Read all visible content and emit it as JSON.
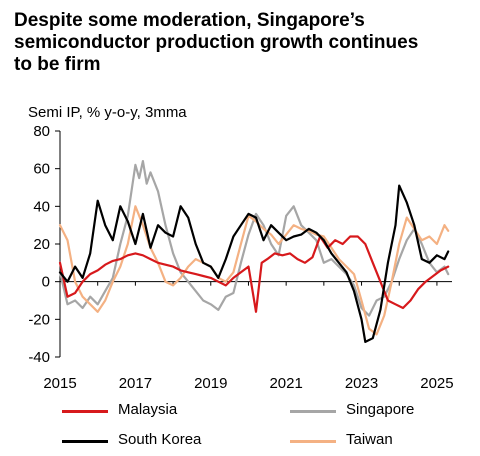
{
  "title_lines": [
    "Despite some moderation, Singapore’s",
    "semiconductor production growth continues",
    "to be firm"
  ],
  "chart_data": {
    "type": "line",
    "title": "Despite some moderation, Singapore’s semiconductor production growth continues to be firm",
    "ylabel": "Semi IP, % y-o-y, 3mma",
    "xlim": [
      2015,
      2025.4
    ],
    "ylim": [
      -40,
      80
    ],
    "x_ticks": [
      "2015",
      "2017",
      "2019",
      "2021",
      "2023",
      "2025"
    ],
    "y_ticks": [
      "80",
      "60",
      "40",
      "20",
      "0",
      "-20",
      "-40"
    ],
    "grid": false,
    "legend_position": "bottom",
    "series": [
      {
        "name": "Malaysia",
        "color": "#d7191c",
        "x": [
          2015.0,
          2015.2,
          2015.4,
          2015.6,
          2015.8,
          2016.0,
          2016.2,
          2016.4,
          2016.6,
          2016.8,
          2017.0,
          2017.2,
          2017.4,
          2017.6,
          2017.8,
          2018.0,
          2018.2,
          2018.4,
          2018.6,
          2018.8,
          2019.0,
          2019.2,
          2019.4,
          2019.6,
          2019.8,
          2020.0,
          2020.2,
          2020.35,
          2020.5,
          2020.7,
          2020.9,
          2021.1,
          2021.3,
          2021.5,
          2021.7,
          2021.9,
          2022.1,
          2022.3,
          2022.5,
          2022.7,
          2022.9,
          2023.1,
          2023.3,
          2023.5,
          2023.7,
          2023.9,
          2024.1,
          2024.3,
          2024.5,
          2024.7,
          2024.9,
          2025.1,
          2025.3
        ],
        "y": [
          10,
          -8,
          -6,
          0,
          4,
          6,
          9,
          11,
          12,
          14,
          15,
          14,
          12,
          10,
          9,
          8,
          6,
          5,
          4,
          3,
          2,
          0,
          -2,
          2,
          5,
          8,
          -16,
          10,
          12,
          15,
          14,
          15,
          12,
          10,
          13,
          24,
          18,
          22,
          20,
          24,
          24,
          20,
          10,
          0,
          -10,
          -12,
          -14,
          -10,
          -4,
          0,
          3,
          6,
          8
        ]
      },
      {
        "name": "Singapore",
        "color": "#a6a6a6",
        "x": [
          2015.0,
          2015.2,
          2015.4,
          2015.6,
          2015.8,
          2016.0,
          2016.2,
          2016.4,
          2016.6,
          2016.8,
          2017.0,
          2017.1,
          2017.2,
          2017.3,
          2017.4,
          2017.6,
          2017.8,
          2018.0,
          2018.2,
          2018.4,
          2018.6,
          2018.8,
          2019.0,
          2019.2,
          2019.4,
          2019.6,
          2019.8,
          2020.0,
          2020.2,
          2020.4,
          2020.6,
          2020.8,
          2021.0,
          2021.2,
          2021.4,
          2021.6,
          2021.8,
          2022.0,
          2022.2,
          2022.4,
          2022.6,
          2022.8,
          2023.0,
          2023.2,
          2023.4,
          2023.6,
          2023.8,
          2024.0,
          2024.2,
          2024.4,
          2024.6,
          2024.8,
          2025.0,
          2025.2,
          2025.3
        ],
        "y": [
          5,
          -12,
          -10,
          -14,
          -8,
          -12,
          -5,
          2,
          20,
          35,
          62,
          55,
          64,
          52,
          58,
          48,
          30,
          15,
          5,
          0,
          -5,
          -10,
          -12,
          -15,
          -8,
          -6,
          10,
          25,
          36,
          30,
          20,
          14,
          35,
          40,
          30,
          26,
          22,
          10,
          12,
          8,
          4,
          -2,
          -14,
          -18,
          -10,
          -8,
          0,
          12,
          22,
          28,
          20,
          10,
          5,
          8,
          4
        ]
      },
      {
        "name": "South Korea",
        "color": "#000000",
        "x": [
          2015.0,
          2015.2,
          2015.4,
          2015.6,
          2015.8,
          2016.0,
          2016.2,
          2016.4,
          2016.6,
          2016.8,
          2017.0,
          2017.2,
          2017.4,
          2017.6,
          2017.8,
          2018.0,
          2018.2,
          2018.4,
          2018.6,
          2018.8,
          2019.0,
          2019.2,
          2019.4,
          2019.6,
          2019.8,
          2020.0,
          2020.2,
          2020.4,
          2020.6,
          2020.8,
          2021.0,
          2021.2,
          2021.4,
          2021.6,
          2021.8,
          2022.0,
          2022.2,
          2022.4,
          2022.6,
          2022.8,
          2023.0,
          2023.1,
          2023.3,
          2023.5,
          2023.7,
          2023.9,
          2024.0,
          2024.2,
          2024.4,
          2024.6,
          2024.8,
          2025.0,
          2025.2,
          2025.3
        ],
        "y": [
          5,
          0,
          8,
          2,
          15,
          43,
          30,
          22,
          40,
          32,
          20,
          36,
          18,
          30,
          26,
          24,
          40,
          34,
          20,
          10,
          8,
          2,
          12,
          24,
          30,
          36,
          34,
          22,
          30,
          26,
          22,
          24,
          25,
          28,
          26,
          22,
          15,
          10,
          5,
          -5,
          -20,
          -32,
          -30,
          -15,
          10,
          30,
          51,
          42,
          30,
          12,
          10,
          14,
          12,
          16
        ]
      },
      {
        "name": "Taiwan",
        "color": "#f4b183",
        "x": [
          2015.0,
          2015.2,
          2015.4,
          2015.6,
          2015.8,
          2016.0,
          2016.2,
          2016.4,
          2016.6,
          2016.8,
          2017.0,
          2017.2,
          2017.4,
          2017.6,
          2017.8,
          2018.0,
          2018.2,
          2018.4,
          2018.6,
          2018.8,
          2019.0,
          2019.2,
          2019.4,
          2019.6,
          2019.8,
          2020.0,
          2020.2,
          2020.4,
          2020.6,
          2020.8,
          2021.0,
          2021.2,
          2021.4,
          2021.6,
          2021.8,
          2022.0,
          2022.2,
          2022.4,
          2022.6,
          2022.8,
          2023.0,
          2023.2,
          2023.4,
          2023.6,
          2023.8,
          2024.0,
          2024.2,
          2024.4,
          2024.6,
          2024.8,
          2025.0,
          2025.2,
          2025.3
        ],
        "y": [
          30,
          22,
          0,
          -8,
          -12,
          -16,
          -10,
          0,
          8,
          20,
          40,
          30,
          18,
          10,
          0,
          -2,
          2,
          8,
          12,
          10,
          8,
          2,
          0,
          5,
          20,
          35,
          32,
          28,
          25,
          20,
          25,
          30,
          28,
          27,
          25,
          24,
          18,
          12,
          8,
          4,
          -10,
          -25,
          -28,
          -18,
          0,
          20,
          34,
          28,
          22,
          24,
          20,
          30,
          27
        ]
      }
    ]
  },
  "legend": [
    {
      "label": "Malaysia",
      "color": "#d7191c"
    },
    {
      "label": "Singapore",
      "color": "#a6a6a6"
    },
    {
      "label": "South Korea",
      "color": "#000000"
    },
    {
      "label": "Taiwan",
      "color": "#f4b183"
    }
  ]
}
